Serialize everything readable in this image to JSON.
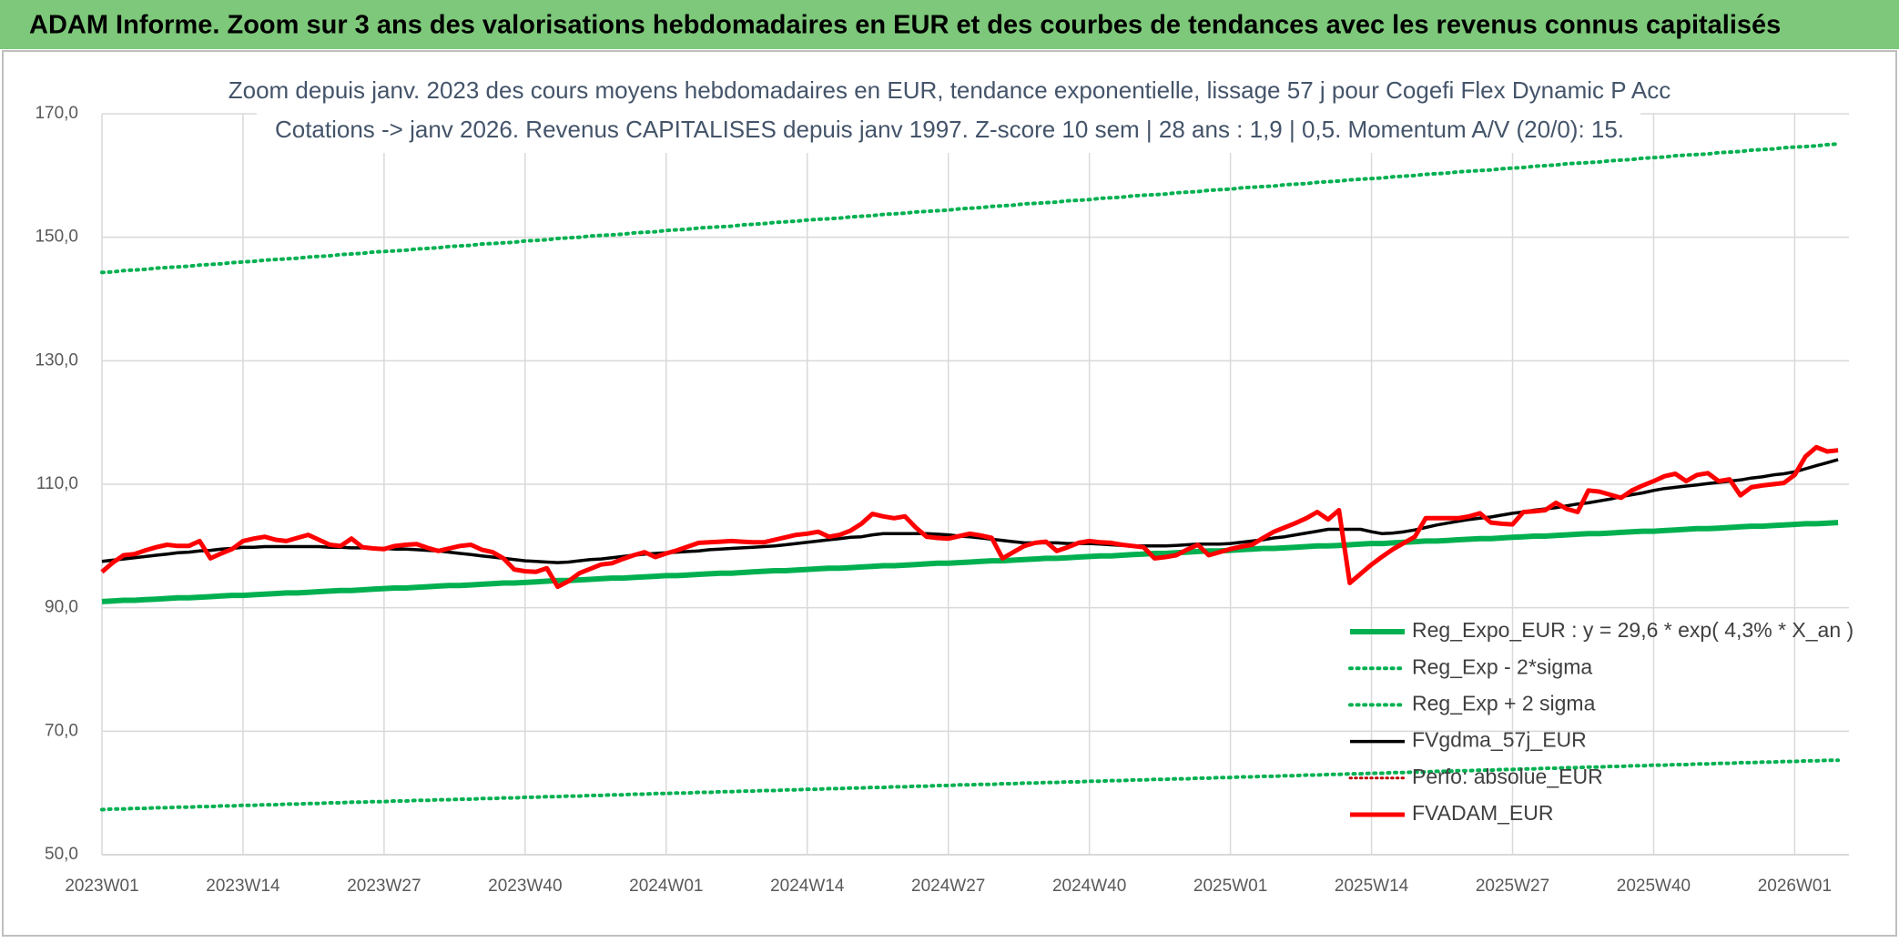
{
  "chart_data": {
    "type": "line",
    "suptitle": "ADAM Informe. Zoom sur 3 ans des valorisations hebdomadaires en EUR et des courbes de tendances avec les revenus connus capitalisés",
    "title": "Zoom depuis janv. 2023 des cours moyens hebdomadaires en EUR, tendance exponentielle, lissage 57 j pour Cogefi Flex Dynamic P Acc",
    "subtitle": "Cotations -> janv 2026. Revenus CAPITALISES depuis janv 1997. Z-score 10 sem | 28 ans : 1,9 | 0,5. Momentum A/V (20/0): 15.",
    "categories": [
      "2023W01",
      null,
      null,
      null,
      null,
      null,
      null,
      null,
      null,
      null,
      null,
      null,
      null,
      "2023W14",
      null,
      null,
      null,
      null,
      null,
      null,
      null,
      null,
      null,
      null,
      null,
      null,
      "2023W27",
      null,
      null,
      null,
      null,
      null,
      null,
      null,
      null,
      null,
      null,
      null,
      null,
      "2023W40",
      null,
      null,
      null,
      null,
      null,
      null,
      null,
      null,
      null,
      null,
      null,
      null,
      "2024W01",
      null,
      null,
      null,
      null,
      null,
      null,
      null,
      null,
      null,
      null,
      null,
      null,
      "2024W14",
      null,
      null,
      null,
      null,
      null,
      null,
      null,
      null,
      null,
      null,
      null,
      null,
      "2024W27",
      null,
      null,
      null,
      null,
      null,
      null,
      null,
      null,
      null,
      null,
      null,
      null,
      "2024W40",
      null,
      null,
      null,
      null,
      null,
      null,
      null,
      null,
      null,
      null,
      null,
      null,
      "2025W01",
      null,
      null,
      null,
      null,
      null,
      null,
      null,
      null,
      null,
      null,
      null,
      null,
      "2025W14",
      null,
      null,
      null,
      null,
      null,
      null,
      null,
      null,
      null,
      null,
      null,
      null,
      "2025W27",
      null,
      null,
      null,
      null,
      null,
      null,
      null,
      null,
      null,
      null,
      null,
      null,
      "2025W40",
      null,
      null,
      null,
      null,
      null,
      null,
      null,
      null,
      null,
      null,
      null,
      null,
      "2026W01",
      null,
      null,
      null,
      null
    ],
    "ylim": [
      50,
      170
    ],
    "yticks": [
      {
        "value": 50,
        "label": "50,0"
      },
      {
        "value": 70,
        "label": "70,0"
      },
      {
        "value": 90,
        "label": "90,0"
      },
      {
        "value": 110,
        "label": "110,0"
      },
      {
        "value": 130,
        "label": "130,0"
      },
      {
        "value": 150,
        "label": "150,0"
      },
      {
        "value": 170,
        "label": "170,0"
      }
    ],
    "grid": true,
    "legend": "lower-right",
    "series": [
      {
        "name": "Reg_Expo_EUR : y = 29,6 * exp( 4,3% *  X_an )",
        "color": "#00b050",
        "style": "solid",
        "width": 6,
        "values": [
          91.0,
          91.1,
          91.2,
          91.2,
          91.3,
          91.4,
          91.5,
          91.6,
          91.6,
          91.7,
          91.8,
          91.9,
          92.0,
          92.0,
          92.1,
          92.2,
          92.3,
          92.4,
          92.4,
          92.5,
          92.6,
          92.7,
          92.8,
          92.8,
          92.9,
          93.0,
          93.1,
          93.2,
          93.2,
          93.3,
          93.4,
          93.5,
          93.6,
          93.6,
          93.7,
          93.8,
          93.9,
          94.0,
          94.0,
          94.1,
          94.2,
          94.3,
          94.4,
          94.4,
          94.5,
          94.6,
          94.7,
          94.8,
          94.8,
          94.9,
          95.0,
          95.1,
          95.2,
          95.2,
          95.3,
          95.4,
          95.5,
          95.6,
          95.6,
          95.7,
          95.8,
          95.9,
          96.0,
          96.0,
          96.1,
          96.2,
          96.3,
          96.4,
          96.4,
          96.5,
          96.6,
          96.7,
          96.8,
          96.8,
          96.9,
          97.0,
          97.1,
          97.2,
          97.2,
          97.3,
          97.4,
          97.5,
          97.6,
          97.6,
          97.7,
          97.8,
          97.9,
          98.0,
          98.0,
          98.1,
          98.2,
          98.3,
          98.4,
          98.4,
          98.5,
          98.6,
          98.7,
          98.8,
          98.8,
          98.9,
          99.0,
          99.1,
          99.2,
          99.2,
          99.3,
          99.4,
          99.5,
          99.6,
          99.6,
          99.7,
          99.8,
          99.9,
          100.0,
          100.0,
          100.1,
          100.2,
          100.3,
          100.4,
          100.4,
          100.5,
          100.6,
          100.7,
          100.8,
          100.8,
          100.9,
          101.0,
          101.1,
          101.2,
          101.2,
          101.3,
          101.4,
          101.5,
          101.6,
          101.6,
          101.7,
          101.8,
          101.9,
          102.0,
          102.0,
          102.1,
          102.2,
          102.3,
          102.4,
          102.4,
          102.5,
          102.6,
          102.7,
          102.8,
          102.8,
          102.9,
          103.0,
          103.1,
          103.2,
          103.2,
          103.3,
          103.4,
          103.5,
          103.6,
          103.6,
          103.7,
          103.8
        ]
      },
      {
        "name": "Reg_Exp - 2*sigma",
        "color": "#00b050",
        "style": "dotted",
        "width": 4,
        "values": [
          57.3,
          57.4,
          57.4,
          57.5,
          57.5,
          57.6,
          57.6,
          57.7,
          57.7,
          57.8,
          57.8,
          57.9,
          57.9,
          58.0,
          58.0,
          58.1,
          58.1,
          58.2,
          58.2,
          58.3,
          58.3,
          58.4,
          58.4,
          58.5,
          58.5,
          58.6,
          58.6,
          58.7,
          58.7,
          58.8,
          58.8,
          58.9,
          58.9,
          59.0,
          59.0,
          59.1,
          59.1,
          59.2,
          59.2,
          59.3,
          59.3,
          59.4,
          59.4,
          59.5,
          59.5,
          59.6,
          59.6,
          59.7,
          59.7,
          59.8,
          59.8,
          59.9,
          59.9,
          60.0,
          60.0,
          60.1,
          60.1,
          60.2,
          60.2,
          60.3,
          60.3,
          60.4,
          60.4,
          60.5,
          60.5,
          60.6,
          60.6,
          60.7,
          60.7,
          60.8,
          60.8,
          60.9,
          60.9,
          61.0,
          61.0,
          61.1,
          61.1,
          61.2,
          61.2,
          61.3,
          61.3,
          61.4,
          61.4,
          61.5,
          61.5,
          61.6,
          61.6,
          61.7,
          61.7,
          61.8,
          61.8,
          61.9,
          61.9,
          62.0,
          62.0,
          62.1,
          62.1,
          62.2,
          62.2,
          62.3,
          62.3,
          62.4,
          62.4,
          62.5,
          62.5,
          62.6,
          62.6,
          62.7,
          62.7,
          62.8,
          62.8,
          62.9,
          62.9,
          63.0,
          63.0,
          63.1,
          63.1,
          63.2,
          63.2,
          63.3,
          63.3,
          63.4,
          63.4,
          63.5,
          63.5,
          63.6,
          63.6,
          63.7,
          63.7,
          63.8,
          63.8,
          63.9,
          63.9,
          64.0,
          64.0,
          64.1,
          64.1,
          64.2,
          64.2,
          64.3,
          64.3,
          64.4,
          64.4,
          64.5,
          64.5,
          64.6,
          64.6,
          64.7,
          64.7,
          64.8,
          64.8,
          64.9,
          64.9,
          65.0,
          65.0,
          65.1,
          65.1,
          65.2,
          65.2,
          65.3,
          65.3
        ]
      },
      {
        "name": "Reg_Exp + 2 sigma",
        "color": "#00b050",
        "style": "dotted",
        "width": 4,
        "values": [
          144.3,
          144.4,
          144.6,
          144.7,
          144.8,
          145.0,
          145.1,
          145.2,
          145.3,
          145.5,
          145.6,
          145.7,
          145.9,
          146.0,
          146.1,
          146.3,
          146.4,
          146.5,
          146.6,
          146.8,
          146.9,
          147.0,
          147.2,
          147.3,
          147.4,
          147.6,
          147.7,
          147.8,
          147.9,
          148.1,
          148.2,
          148.3,
          148.5,
          148.6,
          148.7,
          148.9,
          149.0,
          149.1,
          149.2,
          149.4,
          149.5,
          149.6,
          149.8,
          149.9,
          150.0,
          150.2,
          150.3,
          150.4,
          150.5,
          150.7,
          150.8,
          150.9,
          151.1,
          151.2,
          151.3,
          151.5,
          151.6,
          151.7,
          151.8,
          152.0,
          152.1,
          152.2,
          152.4,
          152.5,
          152.6,
          152.8,
          152.9,
          153.0,
          153.1,
          153.3,
          153.4,
          153.5,
          153.7,
          153.8,
          153.9,
          154.1,
          154.2,
          154.3,
          154.4,
          154.6,
          154.7,
          154.8,
          155.0,
          155.1,
          155.2,
          155.4,
          155.5,
          155.6,
          155.7,
          155.9,
          156.0,
          156.1,
          156.3,
          156.4,
          156.5,
          156.7,
          156.8,
          156.9,
          157.0,
          157.2,
          157.3,
          157.4,
          157.6,
          157.7,
          157.8,
          158.0,
          158.1,
          158.2,
          158.3,
          158.5,
          158.6,
          158.7,
          158.9,
          159.0,
          159.1,
          159.3,
          159.4,
          159.5,
          159.6,
          159.8,
          159.9,
          160.0,
          160.2,
          160.3,
          160.4,
          160.6,
          160.7,
          160.8,
          160.9,
          161.1,
          161.2,
          161.3,
          161.5,
          161.6,
          161.7,
          161.9,
          162.0,
          162.1,
          162.2,
          162.4,
          162.5,
          162.6,
          162.8,
          162.9,
          163.0,
          163.2,
          163.3,
          163.4,
          163.5,
          163.7,
          163.8,
          163.9,
          164.1,
          164.2,
          164.3,
          164.5,
          164.6,
          164.7,
          164.8,
          165.0,
          165.1
        ]
      },
      {
        "name": "FVgdma_57j_EUR",
        "color": "#000000",
        "style": "solid",
        "width": 3.5,
        "values": [
          97.5,
          97.7,
          97.9,
          98.1,
          98.3,
          98.5,
          98.7,
          98.9,
          99.0,
          99.2,
          99.3,
          99.5,
          99.6,
          99.8,
          99.8,
          99.9,
          99.9,
          99.9,
          99.9,
          99.9,
          99.9,
          99.8,
          99.8,
          99.7,
          99.7,
          99.6,
          99.6,
          99.5,
          99.5,
          99.4,
          99.3,
          99.2,
          99.0,
          98.8,
          98.6,
          98.4,
          98.2,
          98.0,
          97.8,
          97.6,
          97.5,
          97.4,
          97.3,
          97.4,
          97.6,
          97.8,
          97.9,
          98.1,
          98.3,
          98.5,
          98.7,
          98.8,
          98.9,
          99.0,
          99.1,
          99.2,
          99.4,
          99.5,
          99.6,
          99.7,
          99.8,
          99.9,
          100.0,
          100.2,
          100.4,
          100.6,
          100.8,
          101.0,
          101.2,
          101.4,
          101.5,
          101.8,
          102.0,
          102.0,
          102.0,
          102.0,
          102.0,
          101.9,
          101.8,
          101.6,
          101.5,
          101.3,
          101.1,
          100.9,
          100.7,
          100.5,
          100.5,
          100.5,
          100.5,
          100.4,
          100.4,
          100.4,
          100.3,
          100.2,
          100.1,
          100.0,
          100.0,
          100.0,
          100.0,
          100.1,
          100.2,
          100.3,
          100.3,
          100.3,
          100.4,
          100.6,
          100.8,
          101.0,
          101.3,
          101.5,
          101.8,
          102.1,
          102.4,
          102.7,
          102.7,
          102.7,
          102.7,
          102.3,
          102.0,
          102.1,
          102.3,
          102.6,
          103.0,
          103.4,
          103.7,
          104.0,
          104.3,
          104.5,
          104.7,
          105.0,
          105.3,
          105.5,
          105.8,
          106.0,
          106.2,
          106.5,
          106.8,
          107.0,
          107.3,
          107.6,
          108.0,
          108.3,
          108.6,
          109.0,
          109.3,
          109.5,
          109.7,
          109.9,
          110.1,
          110.3,
          110.5,
          110.7,
          111.0,
          111.2,
          111.5,
          111.7,
          112.0,
          112.5,
          113.0,
          113.5,
          114.0
        ]
      },
      {
        "name": "Perfo: absolue_EUR",
        "color": "#c00000",
        "style": "dotted",
        "width": 3
      },
      {
        "name": "FVADAM_EUR",
        "color": "#ff0000",
        "style": "solid",
        "width": 5,
        "values": [
          95.8,
          97.3,
          98.5,
          98.7,
          99.3,
          99.8,
          100.2,
          100.0,
          100.0,
          100.8,
          98.0,
          98.8,
          99.5,
          100.8,
          101.2,
          101.5,
          101.0,
          100.8,
          101.3,
          101.8,
          101.0,
          100.2,
          100.0,
          101.2,
          99.8,
          99.6,
          99.5,
          100.0,
          100.2,
          100.3,
          99.7,
          99.2,
          99.6,
          100.0,
          100.2,
          99.4,
          99.0,
          98.0,
          96.2,
          95.9,
          95.8,
          96.4,
          93.4,
          94.3,
          95.6,
          96.3,
          97.0,
          97.2,
          97.9,
          98.5,
          99.0,
          98.2,
          98.8,
          99.3,
          99.9,
          100.5,
          100.6,
          100.7,
          100.8,
          100.7,
          100.6,
          100.6,
          101.0,
          101.4,
          101.8,
          102.0,
          102.3,
          101.5,
          101.8,
          102.5,
          103.6,
          105.2,
          104.8,
          104.5,
          104.8,
          103.0,
          101.5,
          101.3,
          101.2,
          101.6,
          102.0,
          101.7,
          101.3,
          98.0,
          99.0,
          100.0,
          100.5,
          100.7,
          99.2,
          99.8,
          100.5,
          100.8,
          100.6,
          100.5,
          100.2,
          100.0,
          99.8,
          98.0,
          98.2,
          98.5,
          99.4,
          100.2,
          98.5,
          99.0,
          99.5,
          99.9,
          100.2,
          101.3,
          102.3,
          103.0,
          103.7,
          104.5,
          105.5,
          104.3,
          105.8,
          94.0,
          95.5,
          97.0,
          98.3,
          99.5,
          100.5,
          101.5,
          104.5,
          104.5,
          104.5,
          104.5,
          104.8,
          105.3,
          103.8,
          103.6,
          103.5,
          105.5,
          105.6,
          105.8,
          107.0,
          106.0,
          105.5,
          109.0,
          108.8,
          108.3,
          107.8,
          109.0,
          109.8,
          110.5,
          111.3,
          111.7,
          110.5,
          111.5,
          111.8,
          110.5,
          110.8,
          108.2,
          109.5,
          109.8,
          110.0,
          110.2,
          111.5,
          114.5,
          116.0,
          115.3,
          115.5
        ]
      }
    ]
  }
}
